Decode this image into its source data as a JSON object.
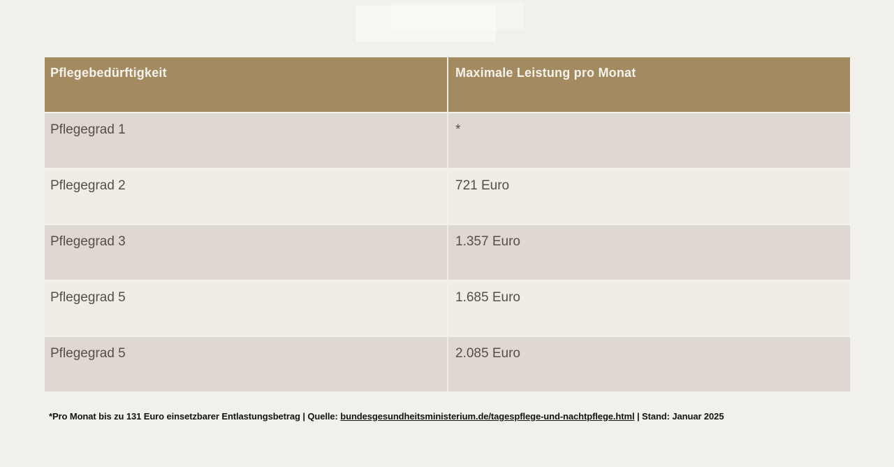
{
  "page": {
    "background_color": "#f1f0ea"
  },
  "chart_data": {
    "type": "table",
    "columns": [
      "Pflegebedürftigkeit",
      "Maximale Leistung pro Monat"
    ],
    "rows": [
      [
        "Pflegegrad 1",
        "*"
      ],
      [
        "Pflegegrad 2",
        "721 Euro"
      ],
      [
        "Pflegegrad 3",
        "1.357 Euro"
      ],
      [
        "Pflegegrad 5",
        "1.685 Euro"
      ],
      [
        "Pflegegrad 5",
        "2.085 Euro"
      ]
    ],
    "footnote": "*Pro Monat bis zu 131 Euro einsetzbarer Entlastungsbetrag | Quelle: bundesgesundheitsministerium.de/tagespflege-und-nachtpflege.html | Stand: Januar 2025",
    "layout": {
      "header_bg": "#a48a60",
      "header_text_color": "#f6f3ec",
      "row_bg_odd": "#ded8d1",
      "row_bg_even": "#f0ede7",
      "cell_text_color": "#544f48"
    }
  },
  "table": {
    "header": {
      "col1": "Pflegebedürftigkeit",
      "col2": "Maximale Leistung pro Monat"
    },
    "rows": [
      {
        "grade": "Pflegegrad 1",
        "amount": "*"
      },
      {
        "grade": "Pflegegrad 2",
        "amount": "721 Euro"
      },
      {
        "grade": "Pflegegrad 3",
        "amount": "1.357 Euro"
      },
      {
        "grade": "Pflegegrad 5",
        "amount": "1.685 Euro"
      },
      {
        "grade": "Pflegegrad 5",
        "amount": "2.085 Euro"
      }
    ]
  },
  "footer": {
    "prefix": "*Pro Monat bis zu 131 Euro einsetzbarer Entlastungsbetrag | Quelle: ",
    "link": "bundesgesundheitsministerium.de/tagespflege-und-nachtpflege.html",
    "suffix": " | Stand: Januar 2025"
  }
}
